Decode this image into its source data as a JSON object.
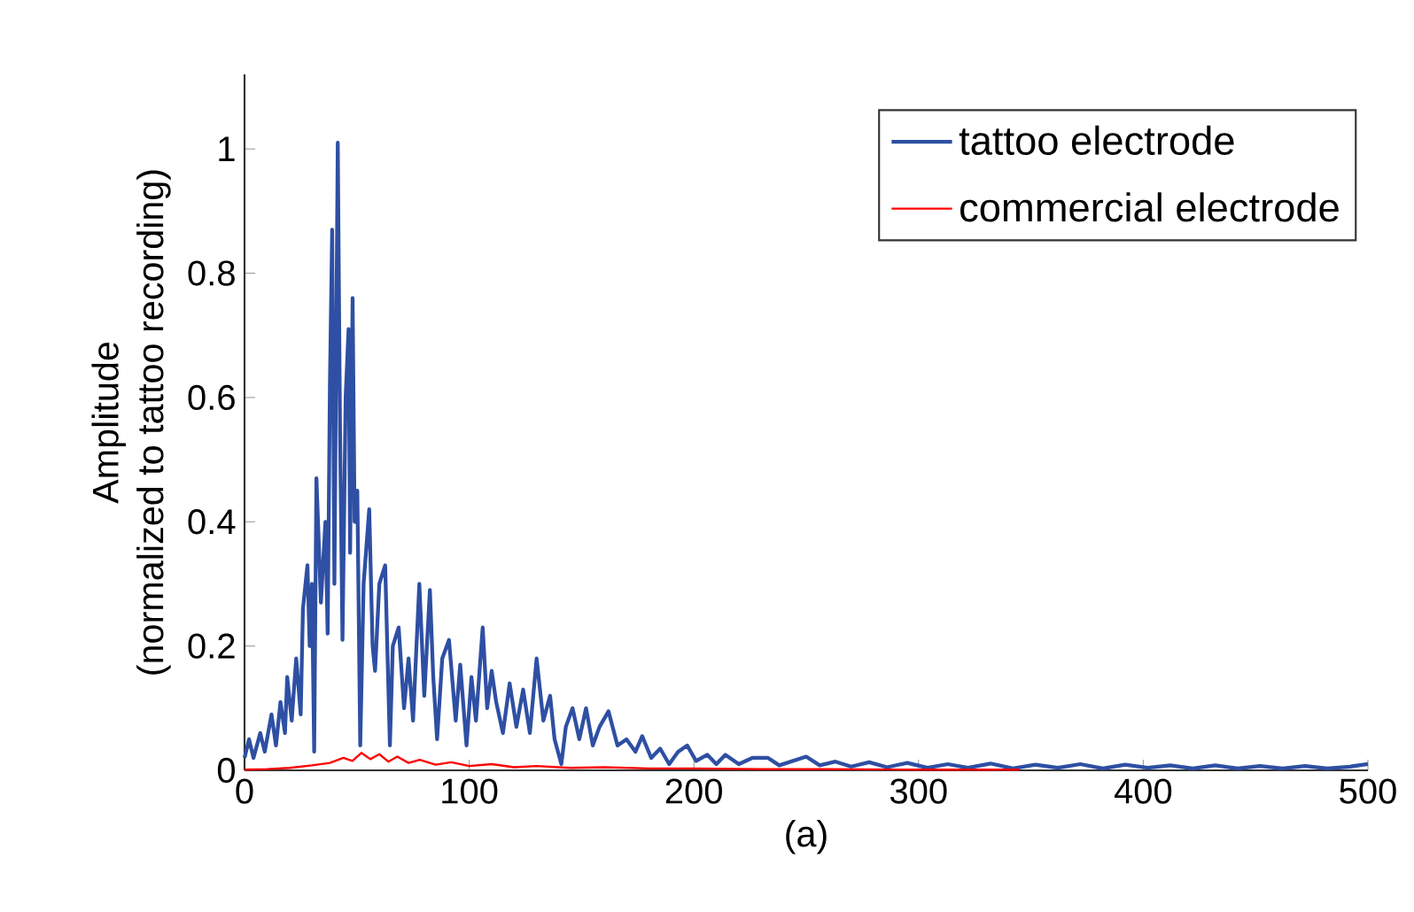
{
  "chart_data": {
    "type": "line",
    "xlabel": "(a)",
    "ylabel": "Amplitude\n(normalized to tattoo recording)",
    "xlim": [
      0,
      500
    ],
    "ylim": [
      0,
      1.12
    ],
    "xticks": [
      0,
      100,
      200,
      300,
      400,
      500
    ],
    "yticks": [
      0,
      0.2,
      0.4,
      0.6,
      0.8,
      1
    ],
    "legend": "top right",
    "series": [
      {
        "name": "tattoo electrode",
        "color": "#2e4fa3",
        "x": [
          0,
          2,
          4,
          7,
          9,
          12,
          14,
          16,
          18,
          19,
          21,
          23,
          25,
          26,
          28,
          29,
          30,
          31,
          32,
          34,
          36,
          37,
          38,
          39,
          40,
          41.5,
          42.5,
          43.6,
          45,
          46.3,
          47,
          48.1,
          49,
          50.2,
          51.5,
          53,
          55.5,
          57,
          58.1,
          60,
          62.6,
          64.7,
          66,
          68.6,
          71,
          73,
          75,
          77.8,
          80,
          82.5,
          84,
          85.7,
          88,
          91,
          94,
          96,
          98.8,
          101,
          103,
          106,
          108,
          110,
          112,
          115,
          118,
          121,
          124,
          127,
          130,
          133,
          136,
          138,
          141,
          143,
          146,
          149,
          152,
          155,
          158,
          162,
          166,
          170,
          174,
          177,
          181,
          185,
          189,
          193,
          197,
          201,
          206,
          210,
          214,
          220,
          226,
          233,
          238,
          244,
          250,
          256,
          263,
          270,
          278,
          286,
          295,
          304,
          313,
          322,
          332,
          342,
          352,
          362,
          372,
          382,
          392,
          402,
          412,
          422,
          432,
          442,
          452,
          462,
          472,
          482,
          492,
          500
        ],
        "values": [
          0.02,
          0.05,
          0.02,
          0.06,
          0.03,
          0.09,
          0.04,
          0.11,
          0.06,
          0.15,
          0.08,
          0.18,
          0.09,
          0.26,
          0.33,
          0.2,
          0.3,
          0.03,
          0.47,
          0.27,
          0.4,
          0.22,
          0.62,
          0.87,
          0.3,
          1.01,
          0.55,
          0.21,
          0.6,
          0.71,
          0.35,
          0.76,
          0.4,
          0.45,
          0.04,
          0.3,
          0.42,
          0.2,
          0.16,
          0.3,
          0.33,
          0.04,
          0.2,
          0.23,
          0.1,
          0.18,
          0.08,
          0.3,
          0.12,
          0.29,
          0.15,
          0.05,
          0.18,
          0.21,
          0.08,
          0.17,
          0.04,
          0.15,
          0.08,
          0.23,
          0.1,
          0.16,
          0.11,
          0.06,
          0.14,
          0.07,
          0.13,
          0.06,
          0.18,
          0.08,
          0.12,
          0.05,
          0.01,
          0.07,
          0.1,
          0.05,
          0.1,
          0.04,
          0.07,
          0.095,
          0.04,
          0.05,
          0.03,
          0.055,
          0.02,
          0.035,
          0.01,
          0.03,
          0.04,
          0.015,
          0.025,
          0.01,
          0.025,
          0.01,
          0.02,
          0.02,
          0.008,
          0.015,
          0.022,
          0.008,
          0.014,
          0.006,
          0.013,
          0.005,
          0.012,
          0.004,
          0.01,
          0.004,
          0.011,
          0.003,
          0.009,
          0.004,
          0.01,
          0.003,
          0.009,
          0.004,
          0.008,
          0.003,
          0.008,
          0.003,
          0.007,
          0.003,
          0.007,
          0.003,
          0.006,
          0.01
        ]
      },
      {
        "name": "commercial electrode",
        "color": "#ff0000",
        "x": [
          0,
          10,
          20,
          30,
          38,
          44,
          48,
          52,
          56,
          60,
          64,
          68,
          73,
          78,
          85,
          92,
          100,
          110,
          120,
          130,
          145,
          160,
          180,
          200,
          230,
          260,
          300,
          345
        ],
        "values": [
          0.001,
          0.002,
          0.004,
          0.008,
          0.012,
          0.02,
          0.015,
          0.028,
          0.018,
          0.026,
          0.014,
          0.022,
          0.012,
          0.017,
          0.009,
          0.013,
          0.007,
          0.01,
          0.005,
          0.007,
          0.004,
          0.005,
          0.003,
          0.003,
          0.002,
          0.002,
          0.001,
          0.001
        ]
      }
    ]
  }
}
